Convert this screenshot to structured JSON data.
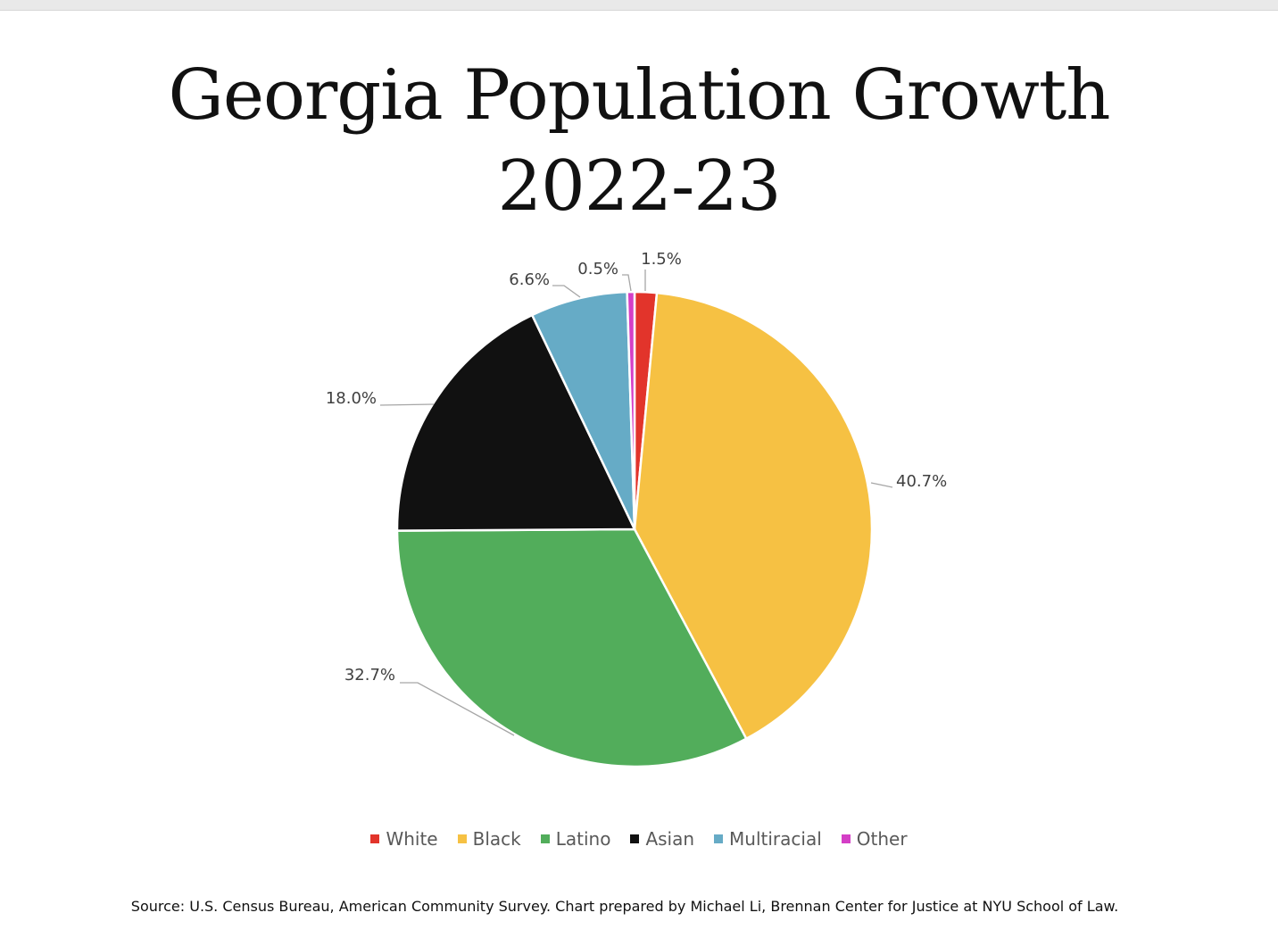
{
  "chart_data": {
    "type": "pie",
    "title_line1": "Georgia Population Growth",
    "title_line2": "2022-23",
    "categories": [
      "White",
      "Black",
      "Latino",
      "Asian",
      "Multiracial",
      "Other"
    ],
    "values": [
      1.5,
      40.7,
      32.7,
      18.0,
      6.6,
      0.5
    ],
    "labels": [
      "1.5%",
      "40.7%",
      "32.7%",
      "18.0%",
      "6.6%",
      "0.5%"
    ],
    "colors": [
      "#e2342b",
      "#f6c143",
      "#52ad5b",
      "#111111",
      "#66abc6",
      "#d43fc6"
    ],
    "legend_position": "bottom",
    "source": "Source: U.S. Census Bureau, American Community Survey. Chart prepared by Michael Li, Brennan Center for Justice at NYU School of Law."
  }
}
